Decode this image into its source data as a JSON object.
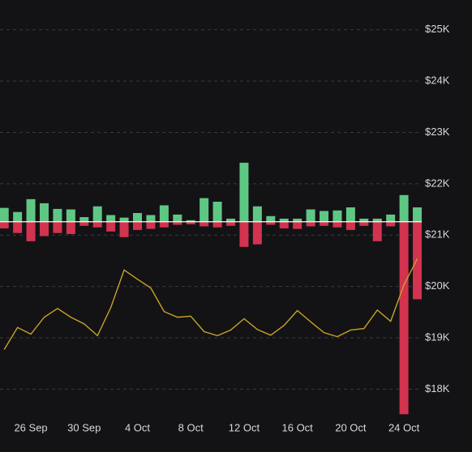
{
  "chart_data": {
    "type": "bar-line",
    "categories": [
      null,
      null,
      "26 Sep",
      null,
      null,
      null,
      "30 Sep",
      null,
      null,
      null,
      "4 Oct",
      null,
      null,
      null,
      "8 Oct",
      null,
      null,
      null,
      "12 Oct",
      null,
      null,
      null,
      "16 Oct",
      null,
      null,
      null,
      "20 Oct",
      null,
      null,
      null,
      "24 Oct",
      null
    ],
    "series": [
      {
        "type": "bar",
        "axis": "y2",
        "color": "#5fc784",
        "values": [
          0.27,
          0.19,
          0.44,
          0.36,
          0.25,
          0.24,
          0.09,
          0.3,
          0.13,
          0.08,
          0.17,
          0.13,
          0.32,
          0.14,
          0.03,
          0.46,
          0.39,
          0.06,
          1.15,
          0.3,
          0.11,
          0.06,
          0.06,
          0.24,
          0.21,
          0.22,
          0.28,
          0.06,
          0.06,
          0.14,
          0.52,
          0.28
        ]
      },
      {
        "type": "bar",
        "axis": "y2",
        "color": "#d3334f",
        "values": [
          -0.13,
          -0.22,
          -0.38,
          -0.28,
          -0.22,
          -0.24,
          -0.08,
          -0.11,
          -0.19,
          -0.3,
          -0.16,
          -0.14,
          -0.11,
          -0.06,
          -0.05,
          -0.09,
          -0.11,
          -0.08,
          -0.49,
          -0.44,
          -0.06,
          -0.13,
          -0.14,
          -0.09,
          -0.08,
          -0.11,
          -0.16,
          -0.08,
          -0.38,
          -0.09,
          -3.75,
          -1.51
        ]
      },
      {
        "type": "line",
        "color": "#c9a227",
        "values": [
          18770,
          19200,
          19070,
          19400,
          19570,
          19400,
          19270,
          19040,
          19590,
          20320,
          20140,
          19970,
          19510,
          19400,
          19420,
          19120,
          19040,
          19150,
          19370,
          19160,
          19050,
          19240,
          19530,
          19310,
          19100,
          19020,
          19150,
          19180,
          19540,
          19320,
          20030,
          20540
        ]
      }
    ],
    "ylim": [
      17500,
      25580
    ],
    "yticks": [
      {
        "value": 18000,
        "label": "$18K"
      },
      {
        "value": 19000,
        "label": "$19K"
      },
      {
        "value": 20000,
        "label": "$20K"
      },
      {
        "value": 21000,
        "label": "$21K"
      },
      {
        "value": 22000,
        "label": "$22K"
      },
      {
        "value": 23000,
        "label": "$23K"
      },
      {
        "value": 24000,
        "label": "$24K"
      },
      {
        "value": 25000,
        "label": "$25K"
      }
    ],
    "y2lim": [
      -3.76,
      4.32
    ],
    "grid": true
  }
}
